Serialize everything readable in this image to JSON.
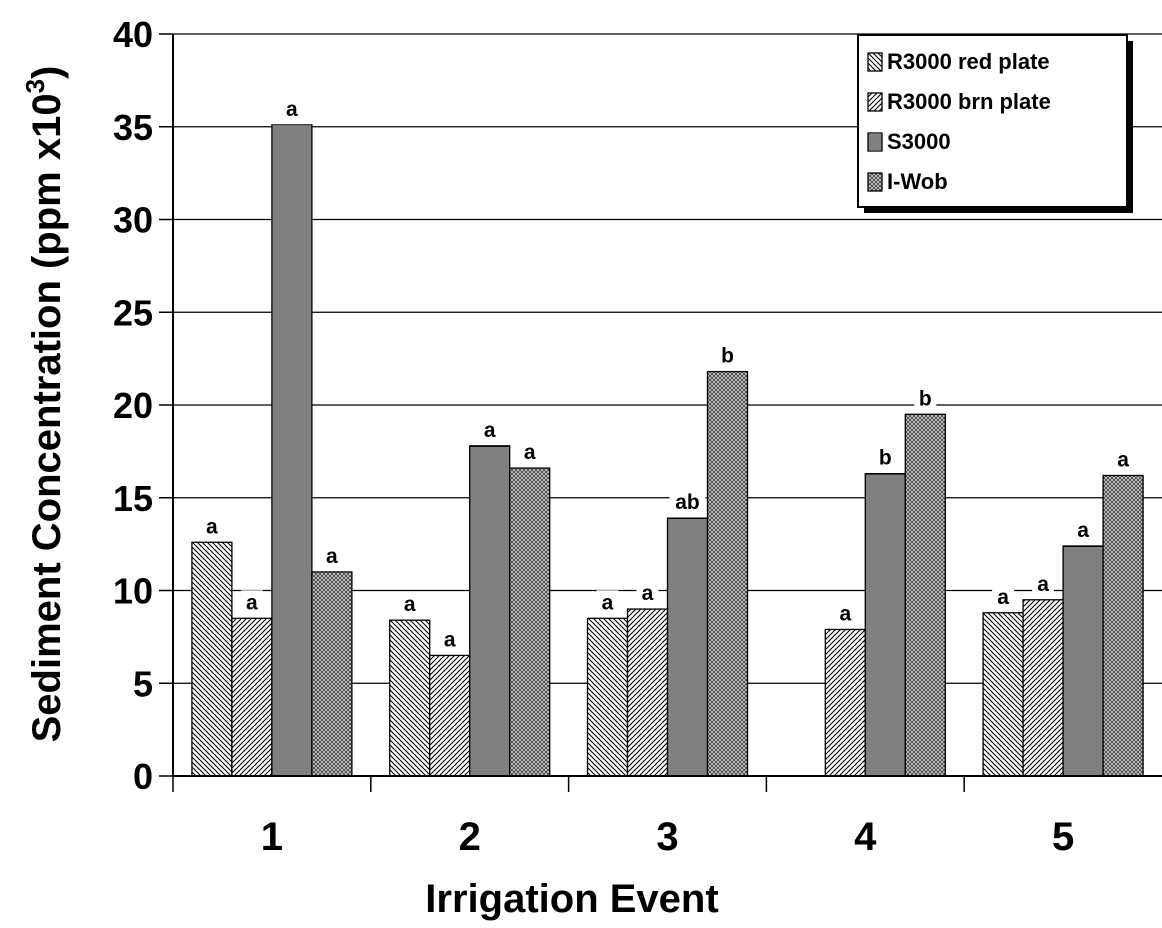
{
  "chart_data": {
    "type": "bar",
    "xlabel": "Irrigation Event",
    "ylabel": "Sediment Concentration (ppm x10",
    "ylabel_sup": "3",
    "ylabel_close": ")",
    "ylim": [
      0,
      40
    ],
    "yticks": [
      0,
      5,
      10,
      15,
      20,
      25,
      30,
      35,
      40
    ],
    "grid": true,
    "legend_position": "top-right",
    "categories": [
      "1",
      "2",
      "3",
      "4",
      "5"
    ],
    "series": [
      {
        "name": "R3000 red plate",
        "values": [
          12.6,
          8.4,
          8.5,
          null,
          8.8
        ],
        "labels": [
          "a",
          "a",
          "a",
          "",
          "a"
        ]
      },
      {
        "name": "R3000 brn plate",
        "values": [
          8.5,
          6.5,
          9.0,
          7.9,
          9.5
        ],
        "labels": [
          "a",
          "a",
          "a",
          "a",
          "a"
        ]
      },
      {
        "name": "S3000",
        "values": [
          35.1,
          17.8,
          13.9,
          16.3,
          12.4
        ],
        "labels": [
          "a",
          "a",
          "ab",
          "b",
          "a"
        ]
      },
      {
        "name": "I-Wob",
        "values": [
          11.0,
          16.6,
          21.8,
          19.5,
          16.2
        ],
        "labels": [
          "a",
          "a",
          "b",
          "b",
          "a"
        ]
      }
    ]
  }
}
